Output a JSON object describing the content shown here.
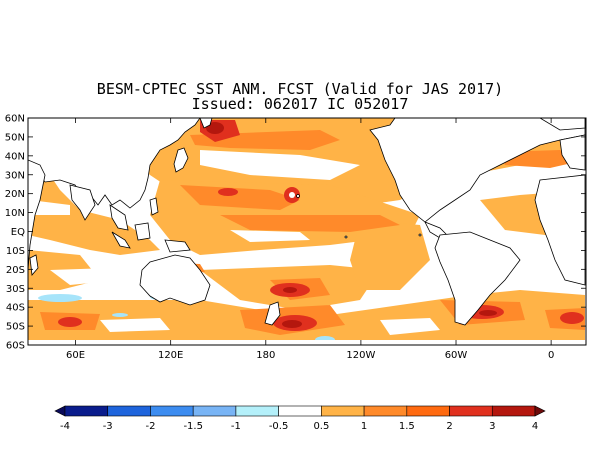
{
  "title": {
    "line1": "BESM-CPTEC SST ANM. FCST  (Valid for JAS 2017)",
    "line2": "Issued:  062017 IC 052017"
  },
  "map": {
    "lat_labels": [
      "60N",
      "50N",
      "40N",
      "30N",
      "20N",
      "10N",
      "EQ",
      "10S",
      "20S",
      "30S",
      "40S",
      "50S",
      "60S"
    ],
    "lon_labels": [
      "60E",
      "120E",
      "180",
      "120W",
      "60W",
      "0"
    ],
    "colors": {
      "light_orange": "#ffb347",
      "orange": "#ff8a2a",
      "dark_orange": "#ff6a10",
      "red": "#e0301e",
      "dark_red": "#b4170e",
      "light_blue": "#a6e4fa",
      "land": "#ffffff",
      "coast": "#000000",
      "ocean_neutral": "#ffffff"
    }
  },
  "colorbar": {
    "labels": [
      "-4",
      "-3",
      "-2",
      "-1.5",
      "-1",
      "-0.5",
      "0.5",
      "1",
      "1.5",
      "2",
      "3",
      "4"
    ],
    "colors": [
      "#0a1c8c",
      "#1e64dc",
      "#3c8cf0",
      "#78b4f5",
      "#b4f0fa",
      "#ffffff",
      "#ffb347",
      "#ff8a2a",
      "#ff6a10",
      "#e0301e",
      "#b4170e"
    ],
    "under_color": "#0a0a5a",
    "over_color": "#6e0a0a"
  }
}
